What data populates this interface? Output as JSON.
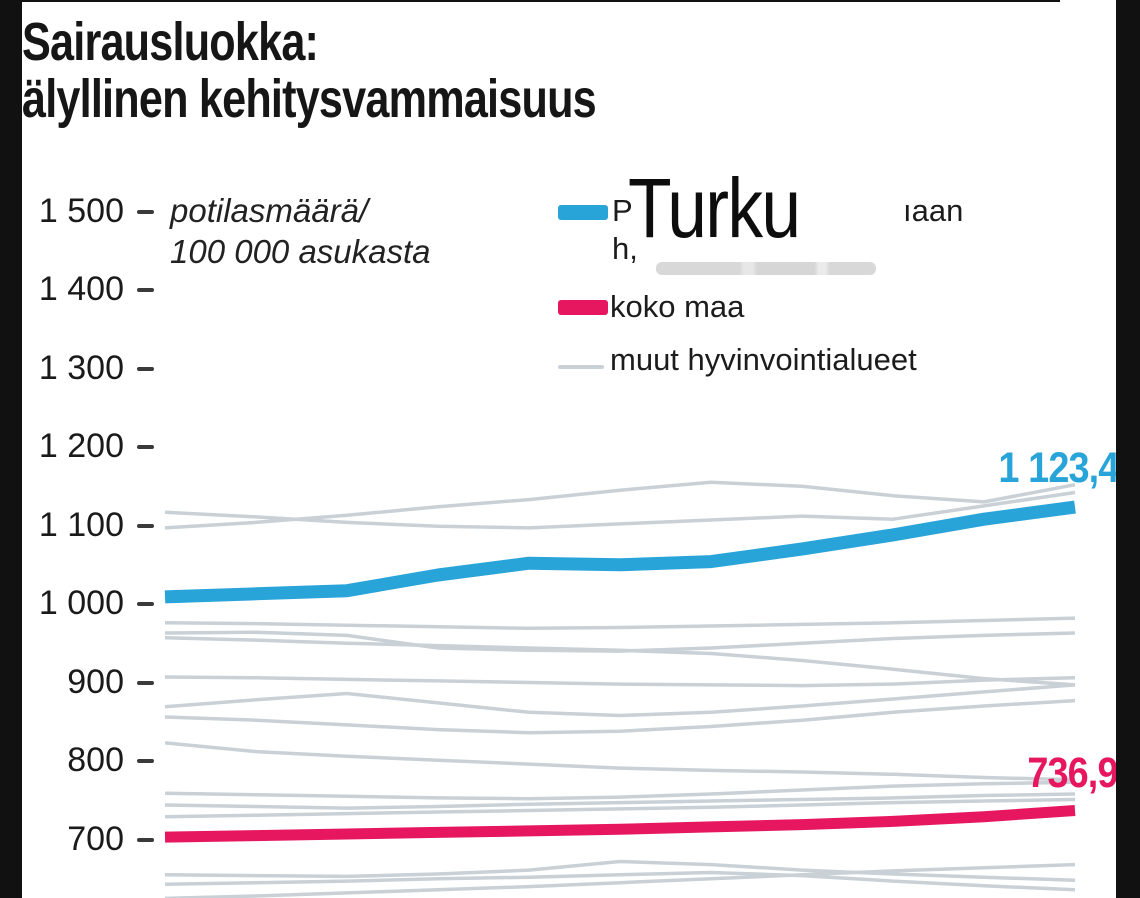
{
  "page": {
    "title_line1": "Sairausluokka:",
    "title_line2": "älyllinen kehitysvammaisuus"
  },
  "axis": {
    "note_line1": "potilasmäärä/",
    "note_line2": "100 000 asukasta"
  },
  "legend": {
    "region_fragment_start": "P",
    "region_fragment_end": "ıaan",
    "region_fragment_line2": "h,",
    "overlay_label": "Turku",
    "kokomaa_label": "koko maa",
    "muut_label": "muut hyvinvointialueet"
  },
  "value_labels": {
    "region": "1 123,4",
    "kokomaa": "736,9"
  },
  "colors": {
    "region": "#29A4D9",
    "kokomaa": "#E6175F",
    "other": "#C9D1D7",
    "frame": "#111111"
  },
  "chart_data": {
    "type": "line",
    "title": "Sairausluokka: älyllinen kehitysvammaisuus",
    "ylabel": "potilasmäärä/100 000 asukasta",
    "yticks": [
      1500,
      1400,
      1300,
      1200,
      1100,
      1000,
      900,
      800,
      700
    ],
    "ytick_labels": [
      "1 500",
      "1 400",
      "1 300",
      "1 200",
      "1 100",
      "1 000",
      "900",
      "800",
      "700"
    ],
    "grid": false,
    "legend_position": "top-right",
    "x_axis_note": "x-axis tick labels cropped out of the visible area",
    "series": [
      {
        "name": "region-line (label hidden behind Turku overlay)",
        "color": "#29A4D9",
        "end_value": 1123.4,
        "end_label": "1 123,4",
        "values": [
          1009,
          1013,
          1017,
          1037,
          1052,
          1050,
          1054,
          1070,
          1088,
          1108,
          1123.4
        ]
      },
      {
        "name": "koko maa",
        "color": "#E6175F",
        "end_value": 736.9,
        "end_label": "736,9",
        "values": [
          703,
          705,
          707,
          709,
          711,
          713,
          716,
          719,
          723,
          729,
          736.9
        ]
      }
    ],
    "other_regions": {
      "name": "muut hyvinvointialueet",
      "color": "#C9D1D7",
      "lines": [
        [
          1117,
          1111,
          1104,
          1099,
          1097,
          1102,
          1107,
          1112,
          1108,
          1125,
          1142
        ],
        [
          1097,
          1104,
          1113,
          1124,
          1133,
          1145,
          1155,
          1150,
          1138,
          1130,
          1152
        ],
        [
          976,
          975,
          973,
          971,
          969,
          970,
          972,
          974,
          976,
          979,
          982
        ],
        [
          963,
          964,
          960,
          944,
          941,
          940,
          944,
          950,
          956,
          960,
          963
        ],
        [
          957,
          954,
          950,
          947,
          944,
          941,
          937,
          928,
          917,
          905,
          897
        ],
        [
          907,
          906,
          904,
          902,
          900,
          898,
          897,
          896,
          898,
          903,
          906
        ],
        [
          869,
          878,
          886,
          874,
          862,
          858,
          862,
          870,
          879,
          888,
          897
        ],
        [
          856,
          852,
          846,
          840,
          836,
          838,
          844,
          852,
          862,
          870,
          877
        ],
        [
          823,
          812,
          806,
          801,
          796,
          791,
          788,
          786,
          783,
          779,
          776
        ],
        [
          759,
          757,
          755,
          753,
          752,
          754,
          758,
          763,
          768,
          771,
          773
        ],
        [
          744,
          742,
          740,
          742,
          745,
          747,
          749,
          751,
          753,
          756,
          758
        ],
        [
          729,
          731,
          733,
          735,
          737,
          739,
          741,
          744,
          747,
          749,
          751
        ],
        [
          655,
          654,
          653,
          656,
          661,
          672,
          668,
          661,
          656,
          652,
          648
        ],
        [
          643,
          645,
          647,
          650,
          652,
          655,
          658,
          654,
          647,
          641,
          636
        ],
        [
          625,
          628,
          632,
          636,
          640,
          645,
          650,
          655,
          660,
          664,
          668
        ]
      ]
    }
  }
}
